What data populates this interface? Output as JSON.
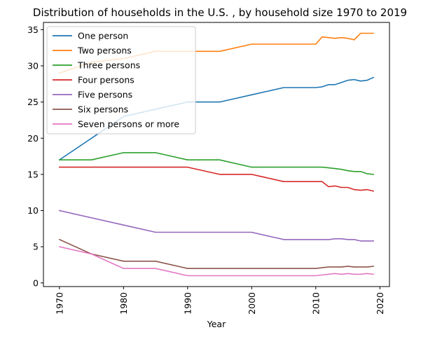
{
  "chart_data": {
    "type": "line",
    "title": "Distribution of households in the U.S. , by household size 1970 to 2019",
    "xlabel": "Year",
    "ylabel": "",
    "xlim": [
      1967.5,
      2021.5
    ],
    "ylim": [
      -0.5,
      36
    ],
    "xticks": [
      1970,
      1980,
      1990,
      2000,
      2010,
      2020
    ],
    "yticks": [
      0,
      5,
      10,
      15,
      20,
      25,
      30,
      35
    ],
    "grid": false,
    "legend_position": "top-left",
    "series": [
      {
        "name": "One person",
        "color": "#1f77b4",
        "x": [
          1970,
          1975,
          1980,
          1985,
          1990,
          1995,
          2000,
          2005,
          2010,
          2011,
          2012,
          2013,
          2014,
          2015,
          2016,
          2017,
          2018,
          2019
        ],
        "y": [
          17,
          20,
          23,
          24,
          25,
          25,
          26,
          27,
          27,
          27.1,
          27.4,
          27.4,
          27.7,
          28.0,
          28.1,
          27.9,
          28.0,
          28.4
        ]
      },
      {
        "name": "Two persons",
        "color": "#ff7f0e",
        "x": [
          1970,
          1975,
          1980,
          1985,
          1990,
          1995,
          2000,
          2005,
          2010,
          2011,
          2012,
          2013,
          2014,
          2015,
          2016,
          2017,
          2018,
          2019
        ],
        "y": [
          29,
          30.5,
          31,
          32,
          32,
          32,
          33,
          33,
          33,
          34.0,
          33.9,
          33.8,
          33.9,
          33.8,
          33.6,
          34.5,
          34.5,
          34.5
        ]
      },
      {
        "name": "Three persons",
        "color": "#2ca02c",
        "x": [
          1970,
          1975,
          1980,
          1985,
          1990,
          1995,
          2000,
          2005,
          2010,
          2011,
          2012,
          2013,
          2014,
          2015,
          2016,
          2017,
          2018,
          2019
        ],
        "y": [
          17,
          17,
          18,
          18,
          17,
          17,
          16,
          16,
          16,
          16.0,
          15.9,
          15.8,
          15.7,
          15.5,
          15.4,
          15.4,
          15.1,
          15.0
        ]
      },
      {
        "name": "Four persons",
        "color": "#d62728",
        "x": [
          1970,
          1975,
          1980,
          1985,
          1990,
          1995,
          2000,
          2005,
          2010,
          2011,
          2012,
          2013,
          2014,
          2015,
          2016,
          2017,
          2018,
          2019
        ],
        "y": [
          16,
          16,
          16,
          16,
          16,
          15,
          15,
          14,
          14,
          14.0,
          13.3,
          13.4,
          13.2,
          13.2,
          12.9,
          12.8,
          12.9,
          12.7
        ]
      },
      {
        "name": "Five persons",
        "color": "#9467bd",
        "x": [
          1970,
          1975,
          1980,
          1985,
          1990,
          1995,
          2000,
          2005,
          2010,
          2011,
          2012,
          2013,
          2014,
          2015,
          2016,
          2017,
          2018,
          2019
        ],
        "y": [
          10,
          9,
          8,
          7,
          7,
          7,
          7,
          6,
          6,
          6.0,
          6.0,
          6.1,
          6.1,
          6.0,
          6.0,
          5.8,
          5.8,
          5.8
        ]
      },
      {
        "name": "Six persons",
        "color": "#8c564b",
        "x": [
          1970,
          1975,
          1980,
          1985,
          1990,
          1995,
          2000,
          2005,
          2010,
          2011,
          2012,
          2013,
          2014,
          2015,
          2016,
          2017,
          2018,
          2019
        ],
        "y": [
          6,
          4,
          3,
          3,
          2,
          2,
          2,
          2,
          2,
          2.1,
          2.2,
          2.2,
          2.2,
          2.3,
          2.2,
          2.2,
          2.2,
          2.3
        ]
      },
      {
        "name": "Seven persons or more",
        "color": "#e377c2",
        "x": [
          1970,
          1975,
          1980,
          1985,
          1990,
          1995,
          2000,
          2005,
          2010,
          2011,
          2012,
          2013,
          2014,
          2015,
          2016,
          2017,
          2018,
          2019
        ],
        "y": [
          5,
          4,
          2,
          2,
          1,
          1,
          1,
          1,
          1,
          1.1,
          1.2,
          1.3,
          1.2,
          1.3,
          1.2,
          1.2,
          1.3,
          1.2
        ]
      }
    ]
  }
}
